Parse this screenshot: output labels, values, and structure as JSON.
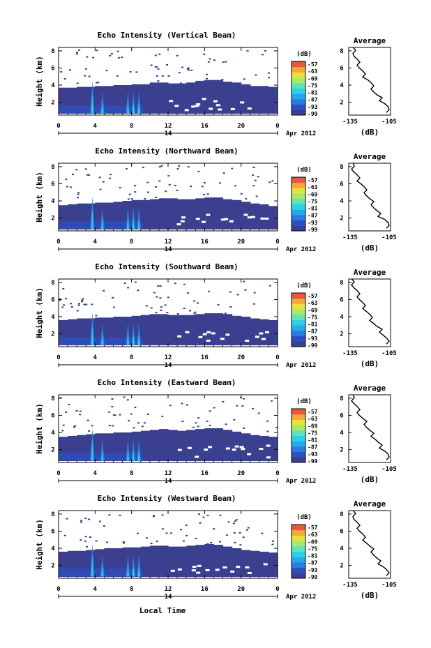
{
  "figure": {
    "xlabel": "Local Time",
    "date_label": "14",
    "month_label": "Apr 2012",
    "avg_title": "Average",
    "colorbar_unit": "(dB)",
    "avg_xlabel": "(dB)"
  },
  "colors": {
    "colormap": [
      "#3b3f8f",
      "#2f4fbf",
      "#2a7be0",
      "#28a7ee",
      "#2ed0e6",
      "#5fe3b8",
      "#a8e86a",
      "#e8e23c",
      "#f5a93a",
      "#e8583a"
    ]
  },
  "chart_data": [
    {
      "type": "heatmap",
      "title": "Echo Intensity (Vertical Beam)",
      "ylabel": "Height (km)",
      "x_ticks": [
        "0",
        "4",
        "8",
        "12",
        "16",
        "20",
        "0"
      ],
      "xlim": [
        0,
        24
      ],
      "y_ticks": [
        "8",
        "6",
        "4",
        "2"
      ],
      "ylim": [
        0.5,
        8.4
      ],
      "colorbar_ticks": [
        "-57",
        "-63",
        "-69",
        "-75",
        "-81",
        "-87",
        "-93",
        "-99"
      ],
      "echo_top_km": [
        3.7,
        3.7,
        3.8,
        3.8,
        3.9,
        3.9,
        4.0,
        4.0,
        4.1,
        4.1,
        4.3,
        4.3,
        4.2,
        4.2,
        4.3,
        4.5,
        4.6,
        4.6,
        4.4,
        4.3,
        4.1,
        3.9,
        3.9,
        3.8
      ],
      "spikes_hour": [
        3.7,
        4.8,
        7.6,
        8.2,
        8.8
      ],
      "avg_profile": {
        "xlim": [
          -135,
          -105
        ],
        "x_ticks": [
          "-135",
          "-105"
        ],
        "y_ticks": [
          "8",
          "6",
          "4",
          "2"
        ],
        "db_at_height": [
          -107,
          -108,
          -112,
          -116,
          -118,
          -120,
          -124,
          -126,
          -128,
          -130,
          -131,
          -133
        ]
      }
    },
    {
      "type": "heatmap",
      "title": "Echo Intensity (Northward Beam)",
      "ylabel": "Height (km)",
      "x_ticks": [
        "0",
        "4",
        "8",
        "12",
        "16",
        "20",
        "0"
      ],
      "xlim": [
        0,
        24
      ],
      "y_ticks": [
        "8",
        "6",
        "4",
        "2"
      ],
      "ylim": [
        0.5,
        8.4
      ],
      "colorbar_ticks": [
        "-57",
        "-63",
        "-69",
        "-75",
        "-81",
        "-87",
        "-93",
        "-99"
      ],
      "echo_top_km": [
        3.5,
        3.6,
        3.7,
        3.7,
        3.8,
        3.8,
        3.9,
        4.0,
        4.1,
        4.1,
        4.2,
        4.3,
        4.3,
        4.2,
        4.2,
        4.3,
        4.4,
        4.4,
        4.2,
        4.1,
        3.9,
        3.7,
        3.6,
        3.4
      ],
      "spikes_hour": [
        3.7,
        4.8,
        7.6,
        8.2,
        8.8
      ],
      "avg_profile": {
        "xlim": [
          -135,
          -105
        ],
        "x_ticks": [
          "-135",
          "-105"
        ],
        "y_ticks": [
          "8",
          "6",
          "4",
          "2"
        ],
        "db_at_height": [
          -107,
          -108,
          -113,
          -116,
          -118,
          -121,
          -123,
          -125,
          -128,
          -130,
          -132,
          -133
        ]
      }
    },
    {
      "type": "heatmap",
      "title": "Echo Intensity (Southward Beam)",
      "ylabel": "Height (km)",
      "x_ticks": [
        "0",
        "4",
        "8",
        "12",
        "16",
        "20",
        "0"
      ],
      "xlim": [
        0,
        24
      ],
      "y_ticks": [
        "8",
        "6",
        "4",
        "2"
      ],
      "ylim": [
        0.5,
        8.4
      ],
      "colorbar_ticks": [
        "-57",
        "-63",
        "-69",
        "-75",
        "-81",
        "-87",
        "-93",
        "-99"
      ],
      "echo_top_km": [
        3.6,
        3.7,
        3.8,
        3.8,
        3.9,
        3.9,
        4.0,
        4.0,
        4.1,
        4.2,
        4.3,
        4.3,
        4.2,
        4.2,
        4.2,
        4.3,
        4.4,
        4.4,
        4.3,
        4.1,
        4.0,
        3.8,
        3.7,
        3.6
      ],
      "spikes_hour": [
        3.7,
        4.8,
        7.6,
        8.2,
        8.8
      ],
      "avg_profile": {
        "xlim": [
          -135,
          -105
        ],
        "x_ticks": [
          "-135",
          "-105"
        ],
        "y_ticks": [
          "8",
          "6",
          "4",
          "2"
        ],
        "db_at_height": [
          -107,
          -109,
          -112,
          -116,
          -119,
          -121,
          -124,
          -126,
          -128,
          -130,
          -132,
          -134
        ]
      }
    },
    {
      "type": "heatmap",
      "title": "Echo Intensity (Eastward Beam)",
      "ylabel": "Height (km)",
      "x_ticks": [
        "0",
        "4",
        "8",
        "12",
        "16",
        "20",
        "0"
      ],
      "xlim": [
        0,
        24
      ],
      "y_ticks": [
        "8",
        "6",
        "4",
        "2"
      ],
      "ylim": [
        0.5,
        8.4
      ],
      "colorbar_ticks": [
        "-57",
        "-63",
        "-69",
        "-75",
        "-81",
        "-87",
        "-93",
        "-99"
      ],
      "echo_top_km": [
        3.5,
        3.6,
        3.7,
        3.8,
        3.9,
        3.9,
        4.0,
        4.0,
        4.1,
        4.2,
        4.3,
        4.4,
        4.3,
        4.2,
        4.3,
        4.4,
        4.5,
        4.5,
        4.3,
        4.1,
        3.9,
        3.7,
        3.6,
        3.5
      ],
      "spikes_hour": [
        3.7,
        4.8,
        7.6,
        8.2,
        8.8
      ],
      "avg_profile": {
        "xlim": [
          -135,
          -105
        ],
        "x_ticks": [
          "-135",
          "-105"
        ],
        "y_ticks": [
          "8",
          "6",
          "4",
          "2"
        ],
        "db_at_height": [
          -107,
          -108,
          -112,
          -115,
          -118,
          -121,
          -123,
          -126,
          -128,
          -130,
          -132,
          -133
        ]
      }
    },
    {
      "type": "heatmap",
      "title": "Echo Intensity (Westward Beam)",
      "ylabel": "Height (km)",
      "x_ticks": [
        "0",
        "4",
        "8",
        "12",
        "16",
        "20",
        "0"
      ],
      "xlim": [
        0,
        24
      ],
      "y_ticks": [
        "8",
        "6",
        "4",
        "2"
      ],
      "ylim": [
        0.5,
        8.4
      ],
      "colorbar_ticks": [
        "-57",
        "-63",
        "-69",
        "-75",
        "-81",
        "-87",
        "-93",
        "-99"
      ],
      "echo_top_km": [
        3.6,
        3.7,
        3.7,
        3.8,
        3.9,
        4.0,
        4.0,
        4.1,
        4.1,
        4.2,
        4.3,
        4.3,
        4.2,
        4.2,
        4.3,
        4.4,
        4.5,
        4.4,
        4.2,
        4.0,
        3.8,
        3.7,
        3.6,
        3.5
      ],
      "spikes_hour": [
        3.7,
        4.8,
        7.6,
        8.2,
        8.8
      ],
      "avg_profile": {
        "xlim": [
          -135,
          -105
        ],
        "x_ticks": [
          "-135",
          "-105"
        ],
        "y_ticks": [
          "8",
          "6",
          "4",
          "2"
        ],
        "db_at_height": [
          -107,
          -109,
          -113,
          -116,
          -118,
          -121,
          -124,
          -126,
          -128,
          -130,
          -131,
          -133
        ]
      }
    }
  ]
}
